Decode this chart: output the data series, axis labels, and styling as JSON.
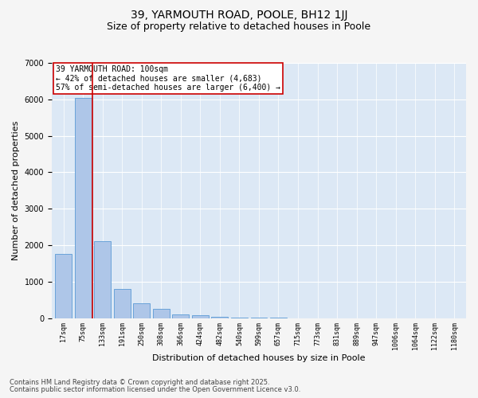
{
  "title1": "39, YARMOUTH ROAD, POOLE, BH12 1JJ",
  "title2": "Size of property relative to detached houses in Poole",
  "xlabel": "Distribution of detached houses by size in Poole",
  "ylabel": "Number of detached properties",
  "categories": [
    "17sqm",
    "75sqm",
    "133sqm",
    "191sqm",
    "250sqm",
    "308sqm",
    "366sqm",
    "424sqm",
    "482sqm",
    "540sqm",
    "599sqm",
    "657sqm",
    "715sqm",
    "773sqm",
    "831sqm",
    "889sqm",
    "947sqm",
    "1006sqm",
    "1064sqm",
    "1122sqm",
    "1180sqm"
  ],
  "values": [
    1750,
    6050,
    2100,
    800,
    400,
    250,
    100,
    80,
    30,
    10,
    5,
    2,
    1,
    0,
    0,
    0,
    0,
    0,
    0,
    0,
    0
  ],
  "bar_color": "#aec6e8",
  "bar_edge_color": "#5b9bd5",
  "vline_color": "#cc0000",
  "annotation_text": "39 YARMOUTH ROAD: 100sqm\n← 42% of detached houses are smaller (4,683)\n57% of semi-detached houses are larger (6,400) →",
  "annotation_box_color": "#ffffff",
  "annotation_box_edge": "#cc0000",
  "ylim": [
    0,
    7000
  ],
  "yticks": [
    0,
    1000,
    2000,
    3000,
    4000,
    5000,
    6000,
    7000
  ],
  "background_color": "#dce8f5",
  "fig_background": "#f5f5f5",
  "footer1": "Contains HM Land Registry data © Crown copyright and database right 2025.",
  "footer2": "Contains public sector information licensed under the Open Government Licence v3.0.",
  "title_fontsize": 10,
  "subtitle_fontsize": 9,
  "tick_fontsize": 6,
  "label_fontsize": 8,
  "annotation_fontsize": 7,
  "footer_fontsize": 6
}
